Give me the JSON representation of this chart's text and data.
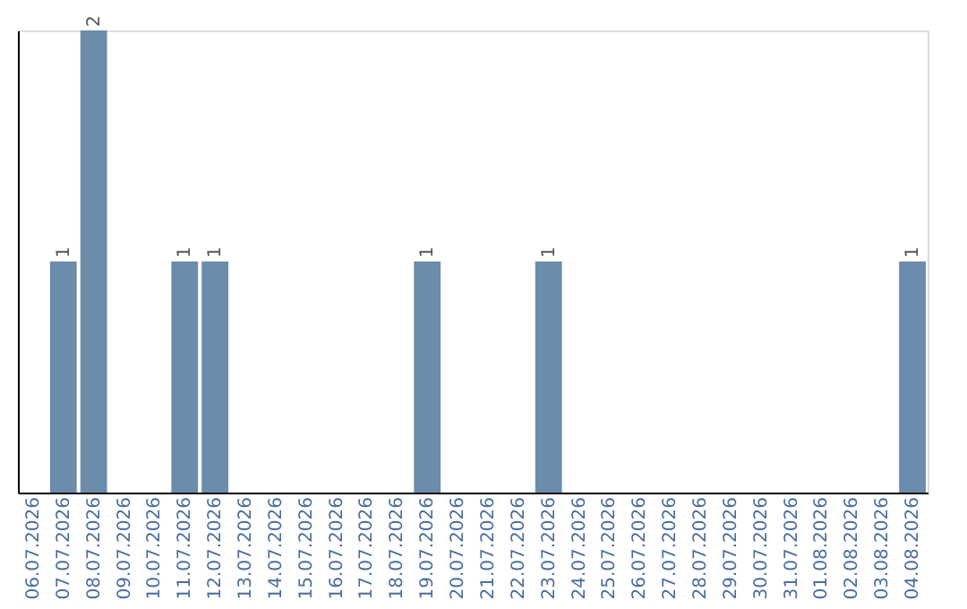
{
  "chart_data": {
    "type": "bar",
    "categories": [
      "06.07.2026",
      "07.07.2026",
      "08.07.2026",
      "09.07.2026",
      "10.07.2026",
      "11.07.2026",
      "12.07.2026",
      "13.07.2026",
      "14.07.2026",
      "15.07.2026",
      "16.07.2026",
      "17.07.2026",
      "18.07.2026",
      "19.07.2026",
      "20.07.2026",
      "21.07.2026",
      "22.07.2026",
      "23.07.2026",
      "24.07.2026",
      "25.07.2026",
      "26.07.2026",
      "27.07.2026",
      "28.07.2026",
      "29.07.2026",
      "30.07.2026",
      "31.07.2026",
      "01.08.2026",
      "02.08.2026",
      "03.08.2026",
      "04.08.2026"
    ],
    "values": [
      0,
      1,
      2,
      0,
      0,
      1,
      1,
      0,
      0,
      0,
      0,
      0,
      0,
      1,
      0,
      0,
      0,
      1,
      0,
      0,
      0,
      0,
      0,
      0,
      0,
      0,
      0,
      0,
      0,
      1
    ],
    "value_labels": [
      null,
      "1",
      "2",
      null,
      null,
      "1",
      "1",
      null,
      null,
      null,
      null,
      null,
      null,
      "1",
      null,
      null,
      null,
      "1",
      null,
      null,
      null,
      null,
      null,
      null,
      null,
      null,
      null,
      null,
      null,
      "1"
    ],
    "color": "#6b8cab",
    "grid": false
  }
}
